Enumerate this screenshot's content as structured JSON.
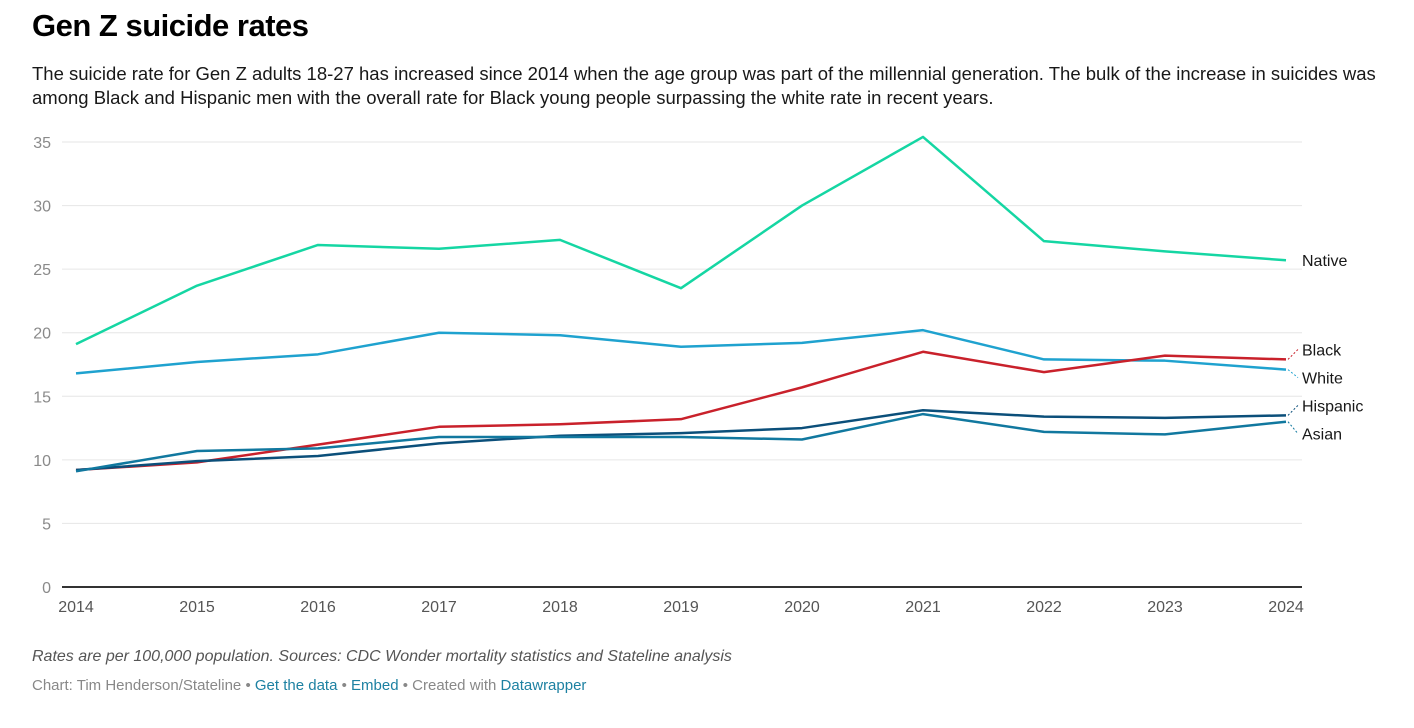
{
  "title": "Gen Z suicide rates",
  "subtitle": "The suicide rate for Gen Z adults 18-27 has increased since 2014 when the age group was part of the millennial generation. The bulk of the increase in suicides was among Black and Hispanic men with the overall rate for Black young people surpassing the white rate in recent years.",
  "notes": "Rates are per 100,000 population. Sources: CDC Wonder mortality statistics and Stateline analysis",
  "byline": {
    "chart_credit": "Chart: Tim Henderson/Stateline",
    "sep": " • ",
    "get_data": "Get the data",
    "embed": "Embed",
    "created_with": "Created with",
    "datawrapper": "Datawrapper"
  },
  "chart_data": {
    "type": "line",
    "title": "Gen Z suicide rates",
    "xlabel": "",
    "ylabel": "",
    "x": [
      2014,
      2015,
      2016,
      2017,
      2018,
      2019,
      2020,
      2021,
      2022,
      2023,
      2024
    ],
    "ylim": [
      0,
      35
    ],
    "yticks": [
      0,
      5,
      10,
      15,
      20,
      25,
      30,
      35
    ],
    "grid": true,
    "legend": "direct labels at right end of lines",
    "series": [
      {
        "name": "Native",
        "color": "#15d6a3",
        "values": [
          19.1,
          23.7,
          26.9,
          26.6,
          27.3,
          23.5,
          30.0,
          35.4,
          27.2,
          26.4,
          25.7
        ]
      },
      {
        "name": "White",
        "color": "#1fa2cf",
        "values": [
          16.8,
          17.7,
          18.3,
          20.0,
          19.8,
          18.9,
          19.2,
          20.2,
          17.9,
          17.8,
          17.1
        ]
      },
      {
        "name": "Black",
        "color": "#c9212b",
        "values": [
          9.2,
          9.8,
          11.2,
          12.6,
          12.8,
          13.2,
          15.7,
          18.5,
          16.9,
          18.2,
          17.9
        ]
      },
      {
        "name": "Hispanic",
        "color": "#0b4f7a",
        "values": [
          9.2,
          9.9,
          10.3,
          11.3,
          11.9,
          12.1,
          12.5,
          13.9,
          13.4,
          13.3,
          13.5
        ]
      },
      {
        "name": "Asian",
        "color": "#11789f",
        "values": [
          9.1,
          10.7,
          10.9,
          11.8,
          11.8,
          11.8,
          11.6,
          13.6,
          12.2,
          12.0,
          13.0
        ]
      }
    ]
  }
}
